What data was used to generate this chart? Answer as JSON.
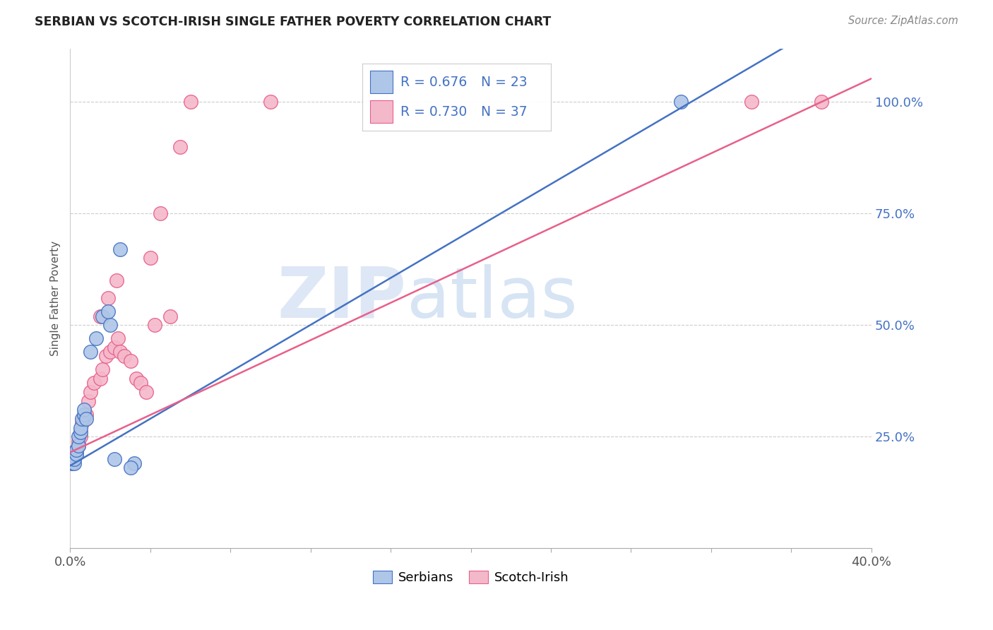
{
  "title": "SERBIAN VS SCOTCH-IRISH SINGLE FATHER POVERTY CORRELATION CHART",
  "source": "Source: ZipAtlas.com",
  "ylabel": "Single Father Poverty",
  "y_ticks": [
    0.25,
    0.5,
    0.75,
    1.0
  ],
  "y_tick_labels": [
    "25.0%",
    "50.0%",
    "75.0%",
    "100.0%"
  ],
  "serbian_R": 0.676,
  "serbian_N": 23,
  "scotch_R": 0.73,
  "scotch_N": 37,
  "serbian_color": "#aec6e8",
  "scotch_color": "#f4b8cb",
  "serbian_line_color": "#4472C4",
  "scotch_line_color": "#e8608a",
  "watermark_zip": "ZIP",
  "watermark_atlas": "atlas",
  "xlim": [
    0.0,
    0.4
  ],
  "ylim": [
    0.0,
    1.1
  ],
  "serbian_line_x0": 0.0,
  "serbian_line_y0": 0.185,
  "serbian_line_x1": 0.31,
  "serbian_line_y1": 1.0,
  "scotch_line_x0": 0.0,
  "scotch_line_y0": 0.215,
  "scotch_line_x1": 0.375,
  "scotch_line_y1": 1.0,
  "serbian_x": [
    0.001,
    0.002,
    0.002,
    0.003,
    0.003,
    0.004,
    0.004,
    0.005,
    0.005,
    0.006,
    0.007,
    0.007,
    0.008,
    0.01,
    0.013,
    0.016,
    0.02,
    0.025,
    0.032,
    0.019,
    0.022,
    0.03,
    0.305
  ],
  "serbian_y": [
    0.19,
    0.19,
    0.2,
    0.21,
    0.22,
    0.23,
    0.25,
    0.26,
    0.27,
    0.29,
    0.3,
    0.31,
    0.29,
    0.44,
    0.47,
    0.52,
    0.5,
    0.67,
    0.19,
    0.53,
    0.2,
    0.18,
    1.0
  ],
  "scotch_x": [
    0.001,
    0.002,
    0.003,
    0.003,
    0.004,
    0.004,
    0.005,
    0.006,
    0.007,
    0.008,
    0.009,
    0.01,
    0.012,
    0.015,
    0.016,
    0.018,
    0.02,
    0.022,
    0.024,
    0.025,
    0.027,
    0.03,
    0.033,
    0.035,
    0.038,
    0.04,
    0.042,
    0.045,
    0.05,
    0.055,
    0.015,
    0.019,
    0.023,
    0.06,
    0.1,
    0.34,
    0.375
  ],
  "scotch_y": [
    0.19,
    0.2,
    0.21,
    0.22,
    0.23,
    0.24,
    0.25,
    0.28,
    0.29,
    0.3,
    0.33,
    0.35,
    0.37,
    0.38,
    0.4,
    0.43,
    0.44,
    0.45,
    0.47,
    0.44,
    0.43,
    0.42,
    0.38,
    0.37,
    0.35,
    0.65,
    0.5,
    0.75,
    0.52,
    0.9,
    0.52,
    0.56,
    0.6,
    1.0,
    1.0,
    1.0,
    1.0
  ]
}
